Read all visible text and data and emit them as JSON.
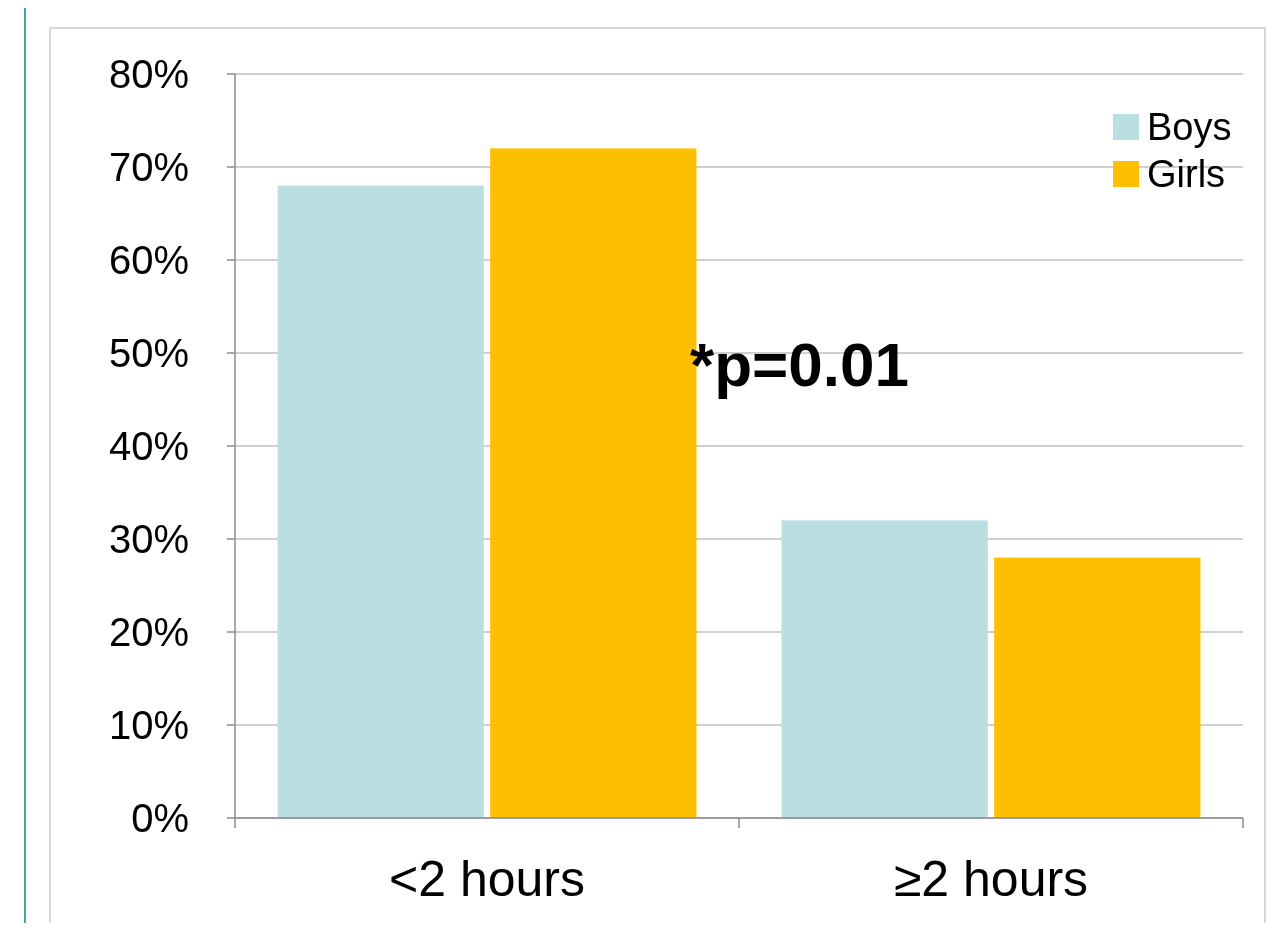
{
  "chart_data": {
    "type": "bar",
    "categories": [
      "<2 hours",
      "≥2 hours"
    ],
    "series": [
      {
        "name": "Boys",
        "color": "#b9dfe2",
        "values": [
          68,
          32
        ]
      },
      {
        "name": "Girls",
        "color": "#fdbf00",
        "values": [
          72,
          28
        ]
      }
    ],
    "ylim": [
      0,
      80
    ],
    "yticks": [
      {
        "value": 0,
        "label": "0%"
      },
      {
        "value": 10,
        "label": "10%"
      },
      {
        "value": 20,
        "label": "20%"
      },
      {
        "value": 30,
        "label": "30%"
      },
      {
        "value": 40,
        "label": "40%"
      },
      {
        "value": 50,
        "label": "50%"
      },
      {
        "value": 60,
        "label": "60%"
      },
      {
        "value": 70,
        "label": "70%"
      },
      {
        "value": 80,
        "label": "80%"
      }
    ],
    "grid": "y",
    "legend": "top right",
    "annotations": [
      "*p=0.01"
    ]
  }
}
